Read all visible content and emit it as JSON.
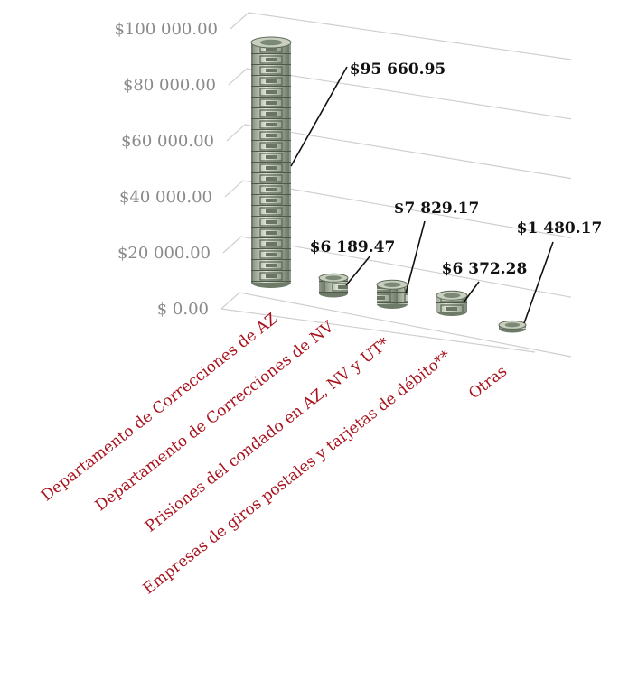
{
  "chart_data": {
    "type": "bar",
    "style": "3d-coin-stacks",
    "title": "",
    "xlabel": "",
    "ylabel": "",
    "ylim": [
      0,
      100000
    ],
    "y_ticks": [
      0,
      20000,
      40000,
      60000,
      80000,
      100000
    ],
    "y_tick_labels": [
      "$ 0.00",
      "$20 000.00",
      "$40 000.00",
      "$60 000.00",
      "$80 000.00",
      "$100 000.00"
    ],
    "grid": true,
    "legend": "none",
    "categories": [
      "Departamento de Correcciones de AZ",
      "Departamento de Correcciones de NV",
      "Prisiones del condado en AZ, NV y UT*",
      "Empresas de giros postales y tarjetas de débito**",
      "Otras"
    ],
    "values": [
      95660.95,
      6189.47,
      7829.17,
      6372.28,
      1480.17
    ],
    "data_labels": [
      "$95 660.95",
      "$6 189.47",
      "$7 829.17",
      "$6 372.28",
      "$1 480.17"
    ],
    "colors": {
      "category_text": "#a8131d",
      "tick_text": "#8a8a8a",
      "gridline": "#cfcfcf",
      "coin_dark": "#5d6b58",
      "coin_light": "#d9ddd2"
    }
  }
}
